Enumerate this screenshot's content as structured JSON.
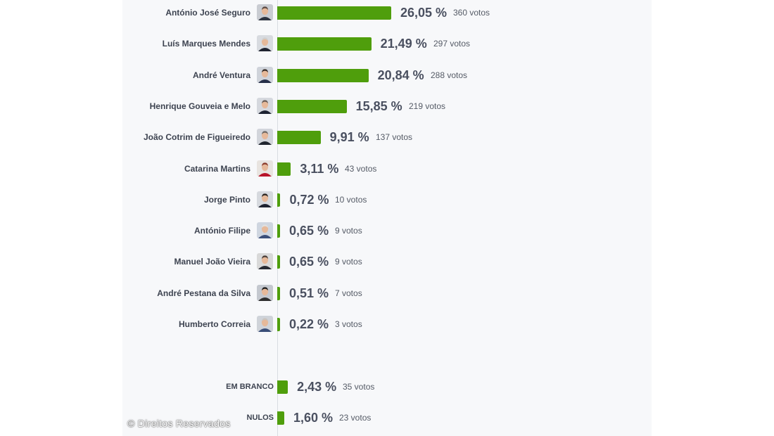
{
  "credit": "© Direitos Reservados",
  "chart_data": {
    "type": "bar",
    "orientation": "horizontal",
    "unit": "%",
    "bar_color": "#4f9e0c",
    "candidates": [
      {
        "name": "António José Seguro",
        "value": 26.05,
        "pct_label": "26,05 %",
        "votes_label": "360 votos",
        "votes": 360
      },
      {
        "name": "Luís Marques Mendes",
        "value": 21.49,
        "pct_label": "21,49 %",
        "votes_label": "297 votos",
        "votes": 297
      },
      {
        "name": "André Ventura",
        "value": 20.84,
        "pct_label": "20,84 %",
        "votes_label": "288 votos",
        "votes": 288
      },
      {
        "name": "Henrique Gouveia e Melo",
        "value": 15.85,
        "pct_label": "15,85 %",
        "votes_label": "219 votos",
        "votes": 219
      },
      {
        "name": "João Cotrim de Figueiredo",
        "value": 9.91,
        "pct_label": "9,91 %",
        "votes_label": "137 votos",
        "votes": 137
      },
      {
        "name": "Catarina Martins",
        "value": 3.11,
        "pct_label": "3,11 %",
        "votes_label": "43 votos",
        "votes": 43
      },
      {
        "name": "Jorge Pinto",
        "value": 0.72,
        "pct_label": "0,72 %",
        "votes_label": "10 votos",
        "votes": 10
      },
      {
        "name": "António Filipe",
        "value": 0.65,
        "pct_label": "0,65 %",
        "votes_label": "9 votos",
        "votes": 9
      },
      {
        "name": "Manuel João Vieira",
        "value": 0.65,
        "pct_label": "0,65 %",
        "votes_label": "9 votos",
        "votes": 9
      },
      {
        "name": "André Pestana da Silva",
        "value": 0.51,
        "pct_label": "0,51 %",
        "votes_label": "7 votos",
        "votes": 7
      },
      {
        "name": "Humberto Correia",
        "value": 0.22,
        "pct_label": "0,22 %",
        "votes_label": "3 votos",
        "votes": 3
      }
    ],
    "special": [
      {
        "name": "EM BRANCO",
        "value": 2.43,
        "pct_label": "2,43 %",
        "votes_label": "35 votos",
        "votes": 35
      },
      {
        "name": "NULOS",
        "value": 1.6,
        "pct_label": "1,60 %",
        "votes_label": "23 votos",
        "votes": 23
      }
    ]
  }
}
